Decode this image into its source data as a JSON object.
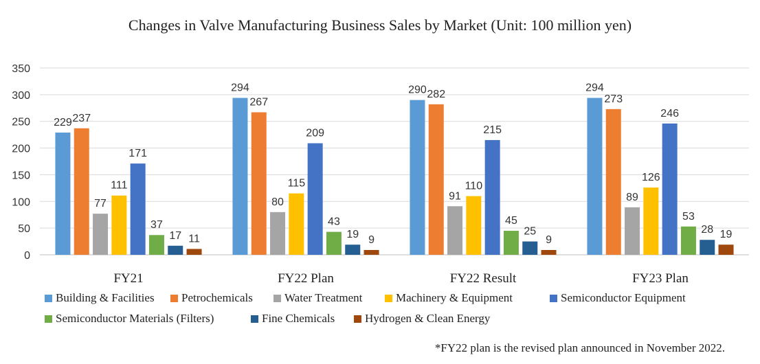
{
  "chart_data": {
    "type": "bar",
    "title": "Changes in Valve Manufacturing Business Sales by Market (Unit: 100 million yen)",
    "xlabel": "",
    "ylabel": "",
    "ylim": [
      0,
      350
    ],
    "yticks": [
      0,
      50,
      100,
      150,
      200,
      250,
      300,
      350
    ],
    "grid": true,
    "legend_position": "bottom",
    "categories": [
      "FY21",
      "FY22 Plan",
      "FY22 Result",
      "FY23 Plan"
    ],
    "series": [
      {
        "name": "Building & Facilities",
        "color": "#5B9BD5",
        "values": [
          229,
          294,
          290,
          294
        ]
      },
      {
        "name": "Petrochemicals",
        "color": "#ED7D31",
        "values": [
          237,
          267,
          282,
          273
        ]
      },
      {
        "name": "Water Treatment",
        "color": "#A5A5A5",
        "values": [
          77,
          80,
          91,
          89
        ]
      },
      {
        "name": "Machinery & Equipment",
        "color": "#FFC000",
        "values": [
          111,
          115,
          110,
          126
        ]
      },
      {
        "name": "Semiconductor Equipment",
        "color": "#4472C4",
        "values": [
          171,
          209,
          215,
          246
        ]
      },
      {
        "name": "Semiconductor Materials (Filters)",
        "color": "#70AD47",
        "values": [
          37,
          43,
          45,
          53
        ]
      },
      {
        "name": "Fine Chemicals",
        "color": "#255E91",
        "values": [
          17,
          19,
          25,
          28
        ]
      },
      {
        "name": "Hydrogen & Clean Energy",
        "color": "#9E480E",
        "values": [
          11,
          9,
          9,
          19
        ]
      }
    ],
    "footnote": "*FY22 plan is the revised plan announced in November 2022."
  }
}
